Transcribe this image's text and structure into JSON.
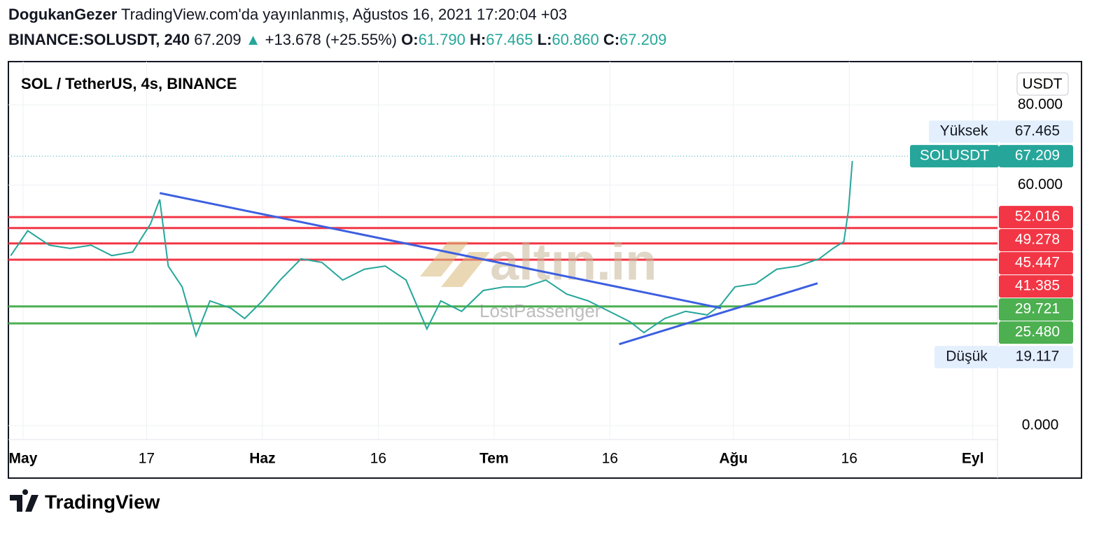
{
  "header": {
    "author": "DogukanGezer",
    "published": "TradingView.com'da yayınlanmış, Ağustos 16, 2021 17:20:04 +03",
    "symbol": "BINANCE:SOLUSDT, 240",
    "last": "67.209",
    "arrow": "▲",
    "change": "+13.678 (+25.55%)",
    "open_label": "O:",
    "open": "61.790",
    "high_label": "H:",
    "high": "67.465",
    "low_label": "L:",
    "low": "60.860",
    "close_label": "C:",
    "close": "67.209"
  },
  "chart_data": {
    "type": "line",
    "title": "SOL / TetherUS, 4s, BINANCE",
    "currency": "USDT",
    "x": [
      -1.6,
      0.6,
      3.4,
      6.1,
      8.8,
      11.5,
      14.2,
      16.5,
      17.7,
      18.8,
      20.6,
      22.4,
      24.2,
      26.9,
      28.7,
      31,
      33.3,
      36,
      38.7,
      41.4,
      44.2,
      46.9,
      49.6,
      52.3,
      54.1,
      56.8,
      59.6,
      62.3,
      65,
      67.7,
      70.4,
      73.2,
      75.9,
      78.6,
      80.4,
      83.1,
      85.8,
      88.6,
      90.4,
      92.2,
      94.9,
      97.6,
      100.4,
      103.1,
      104.9,
      106.3,
      106.9,
      107.4
    ],
    "series": [
      {
        "name": "SOLUSDT",
        "color": "#26a69a",
        "values": [
          42.4,
          48.6,
          45,
          44.2,
          45,
          42.4,
          43.3,
          50.3,
          56.4,
          39.8,
          34.6,
          22.4,
          31.1,
          29.3,
          26.7,
          31.1,
          36.3,
          41.6,
          40.7,
          36.3,
          39,
          39.8,
          36.3,
          24.1,
          31.1,
          28.5,
          33.7,
          34.6,
          34.6,
          36.3,
          32.8,
          31.1,
          28.5,
          25.9,
          23.2,
          26.7,
          28.5,
          27.6,
          30.2,
          34.6,
          35.4,
          39,
          39.8,
          41.6,
          44.2,
          45.9,
          53.8,
          66
        ]
      }
    ],
    "xlim": [
      -1.9,
      126.2
    ],
    "ylim": [
      -3.5,
      90.8
    ],
    "xticks": [
      {
        "value": 0,
        "label": "May"
      },
      {
        "value": 16,
        "label": "17"
      },
      {
        "value": 31,
        "label": "Haz"
      },
      {
        "value": 46,
        "label": "16"
      },
      {
        "value": 61,
        "label": "Tem"
      },
      {
        "value": 76,
        "label": "16"
      },
      {
        "value": 92,
        "label": "Ağu"
      },
      {
        "value": 107,
        "label": "16"
      },
      {
        "value": 123,
        "label": "Eyl"
      }
    ],
    "yticks": [
      {
        "value": 0,
        "label": "0.000"
      },
      {
        "value": 60,
        "label": "60.000"
      },
      {
        "value": 80,
        "label": "80.000"
      }
    ],
    "last_price": {
      "value": 67.209,
      "label": "67.209",
      "color": "#26a69a"
    },
    "high": {
      "name": "Yüksek",
      "value": 67.465,
      "label": "67.465"
    },
    "low": {
      "name": "Düşük",
      "value": 19.117,
      "label": "19.117"
    },
    "levels": [
      {
        "value": 52.016,
        "label": "52.016",
        "color": "#f23645"
      },
      {
        "value": 49.278,
        "label": "49.278",
        "color": "#f23645"
      },
      {
        "value": 45.447,
        "label": "45.447",
        "color": "#f23645"
      },
      {
        "value": 41.385,
        "label": "41.385",
        "color": "#f23645"
      },
      {
        "value": 29.721,
        "label": "29.721",
        "color": "#4caf50"
      },
      {
        "value": 25.48,
        "label": "25.480",
        "color": "#4caf50"
      }
    ],
    "trendlines": [
      {
        "x": [
          17.7,
          90.4
        ],
        "y": [
          58,
          29.3
        ],
        "color": "#3c5fe0"
      },
      {
        "x": [
          77.2,
          102.9
        ],
        "y": [
          20.3,
          35.5
        ],
        "color": "#3c5fe0"
      }
    ],
    "watermark": [
      "altın.in",
      "LostPassenger"
    ]
  },
  "footer": {
    "brand": "TradingView"
  }
}
